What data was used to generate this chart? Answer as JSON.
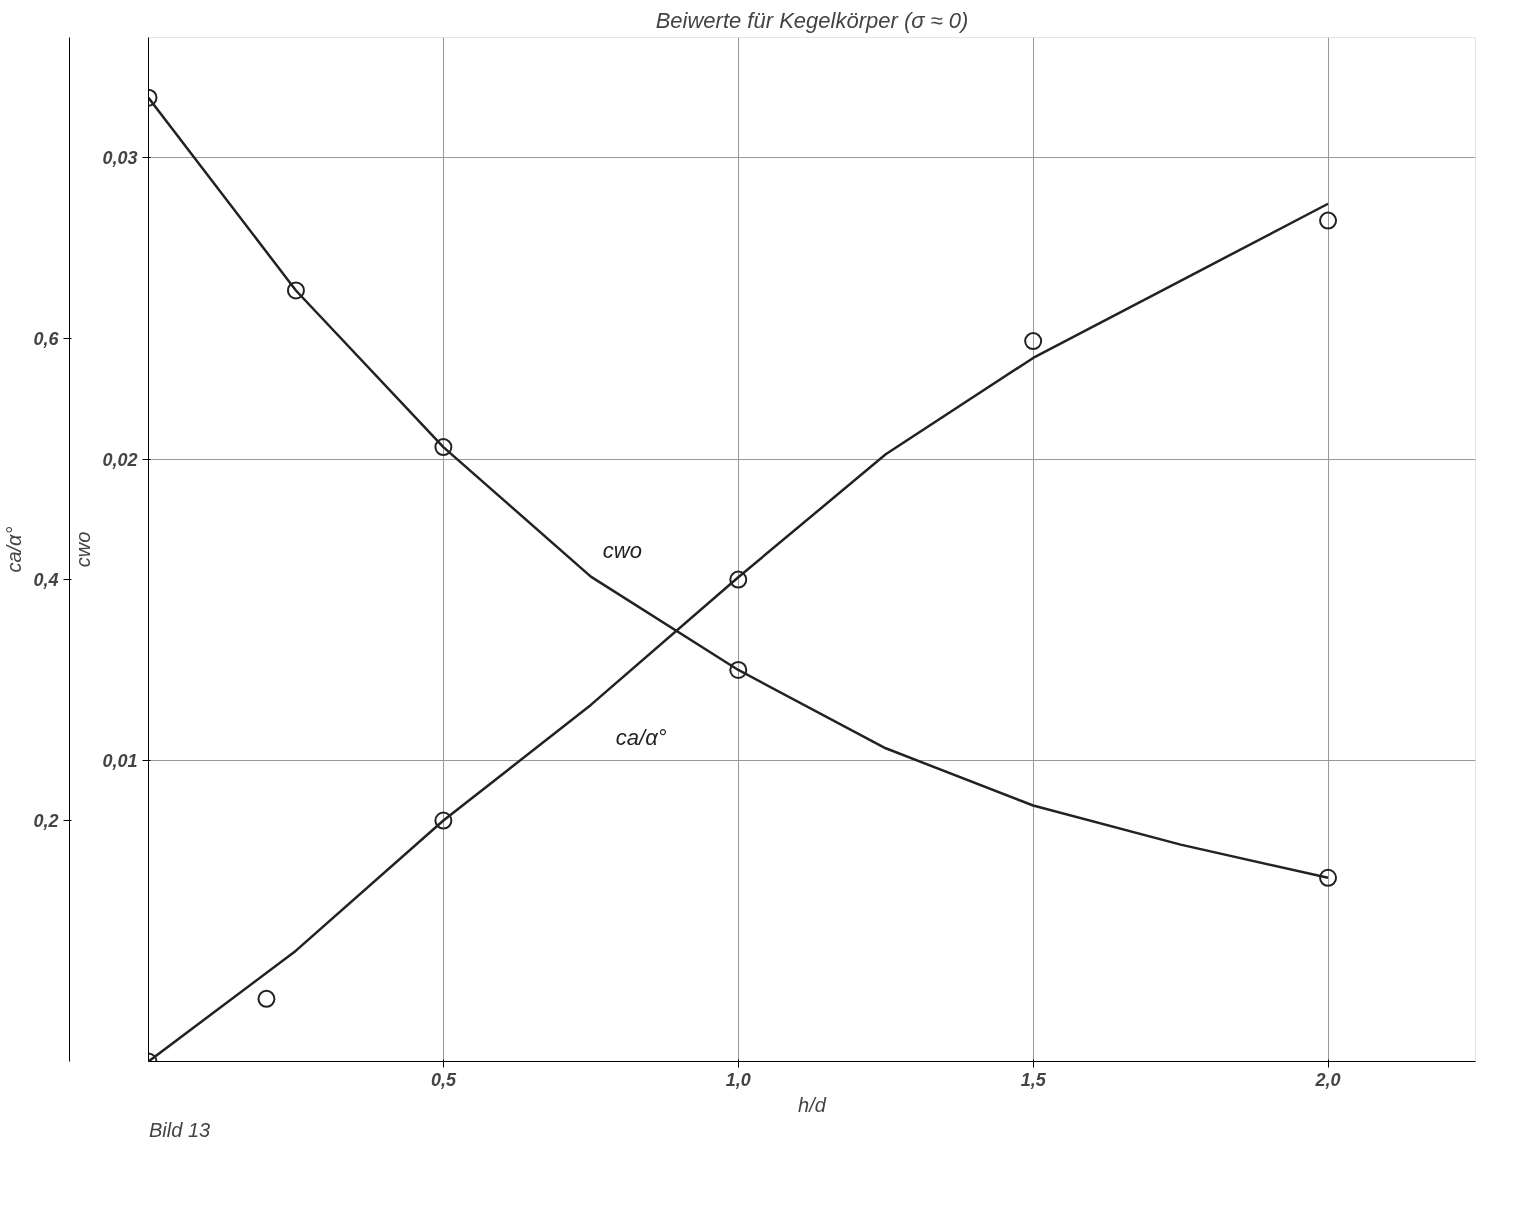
{
  "chart_data": {
    "type": "line",
    "title": "Beiwerte für Kegelkörper (σ ≈ 0)",
    "xlabel": "h/d",
    "ylabel": "cwo",
    "y2label": "ca/α°",
    "xlim": [
      0,
      2.25
    ],
    "xticks": [
      {
        "value": 0.5,
        "label": "0,5"
      },
      {
        "value": 1.0,
        "label": "1,0"
      },
      {
        "value": 1.5,
        "label": "1,5"
      },
      {
        "value": 2.0,
        "label": "2,0"
      }
    ],
    "ylim": [
      0,
      0.034
    ],
    "yticks": [
      {
        "value": 0.01,
        "label": "0,01"
      },
      {
        "value": 0.02,
        "label": "0,02"
      },
      {
        "value": 0.03,
        "label": "0,03"
      }
    ],
    "y2lim": [
      0,
      0.85
    ],
    "y2ticks": [
      {
        "value": 0.2,
        "label": "0,2"
      },
      {
        "value": 0.4,
        "label": "0,4"
      },
      {
        "value": 0.6,
        "label": "0,6"
      }
    ],
    "grid": true,
    "line_style": "solid",
    "annotations": [
      "Bild 13"
    ],
    "series": [
      {
        "name": "cwo",
        "color": "#222222",
        "x": [
          0,
          0.25,
          0.5,
          0.75,
          1.0,
          1.25,
          1.5,
          1.75,
          2.0
        ],
        "values": [
          0.032,
          0.0256,
          0.0204,
          0.0161,
          0.013,
          0.0104,
          0.0085,
          0.0072,
          0.0061
        ]
      },
      {
        "type": "scatter",
        "marker": "circle",
        "color": "#222222",
        "x": [
          0,
          0.25,
          0.5,
          1.0,
          2.0
        ],
        "values": [
          0.032,
          0.0256,
          0.0204,
          0.013,
          0.0061
        ]
      },
      {
        "name": "ca/α°",
        "axis": "y2",
        "color": "#222222",
        "x": [
          0,
          0.25,
          0.5,
          0.75,
          1.0,
          1.25,
          1.5,
          1.75,
          2.0
        ],
        "values": [
          0,
          0.092,
          0.2,
          0.296,
          0.402,
          0.504,
          0.584,
          0.648,
          0.712
        ]
      },
      {
        "type": "scatter",
        "axis": "y2",
        "marker": "circle",
        "color": "#222222",
        "x": [
          0,
          0.2,
          0.5,
          1.0,
          1.5,
          2.0
        ],
        "values": [
          0,
          0.052,
          0.2,
          0.4,
          0.598,
          0.698
        ]
      }
    ]
  }
}
